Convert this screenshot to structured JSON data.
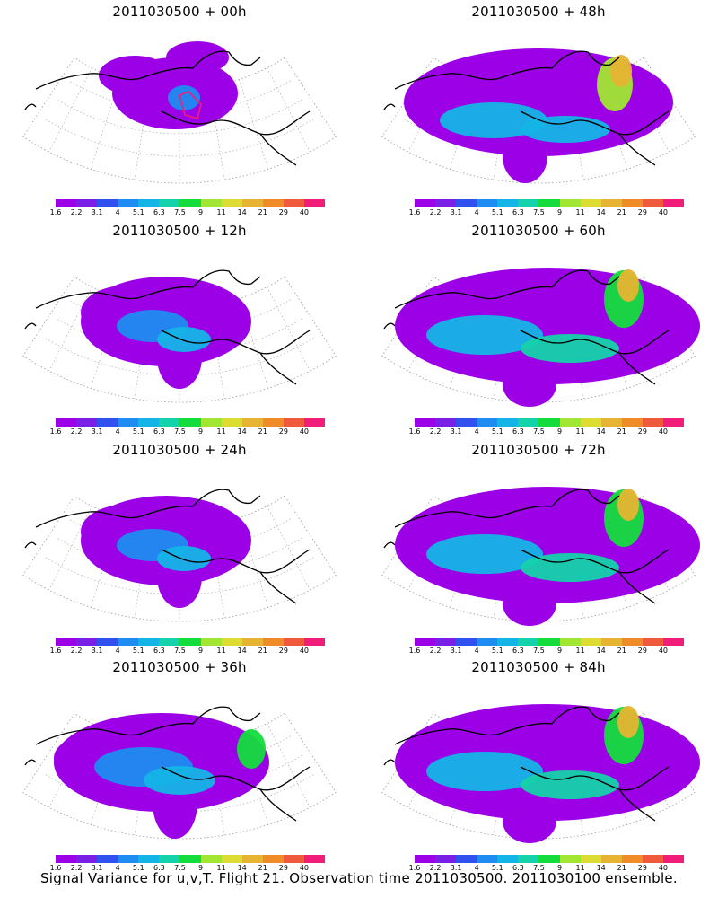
{
  "panels": [
    {
      "title": "2011030500 + 00h",
      "level": 0
    },
    {
      "title": "2011030500 + 48h",
      "level": 3
    },
    {
      "title": "2011030500 + 12h",
      "level": 1
    },
    {
      "title": "2011030500 + 60h",
      "level": 4
    },
    {
      "title": "2011030500 + 24h",
      "level": 1
    },
    {
      "title": "2011030500 + 72h",
      "level": 4
    },
    {
      "title": "2011030500 + 36h",
      "level": 2
    },
    {
      "title": "2011030500 + 84h",
      "level": 4
    }
  ],
  "colorbar": {
    "colors": [
      "#9b00e6",
      "#7a1fe6",
      "#3050f0",
      "#1e8cf0",
      "#14b4e6",
      "#14d2aa",
      "#14dc3c",
      "#a0e632",
      "#dcdc32",
      "#e6b432",
      "#f08c28",
      "#f05a3c",
      "#f01e78"
    ],
    "labels": [
      "1.6",
      "2.2",
      "3.1",
      "4",
      "5.1",
      "6.3",
      "7.5",
      "9",
      "11",
      "14",
      "21",
      "29",
      "40"
    ]
  },
  "caption": "Signal Variance for u,v,T. Flight 21. Observation time 2011030500. 2011030100 ensemble."
}
